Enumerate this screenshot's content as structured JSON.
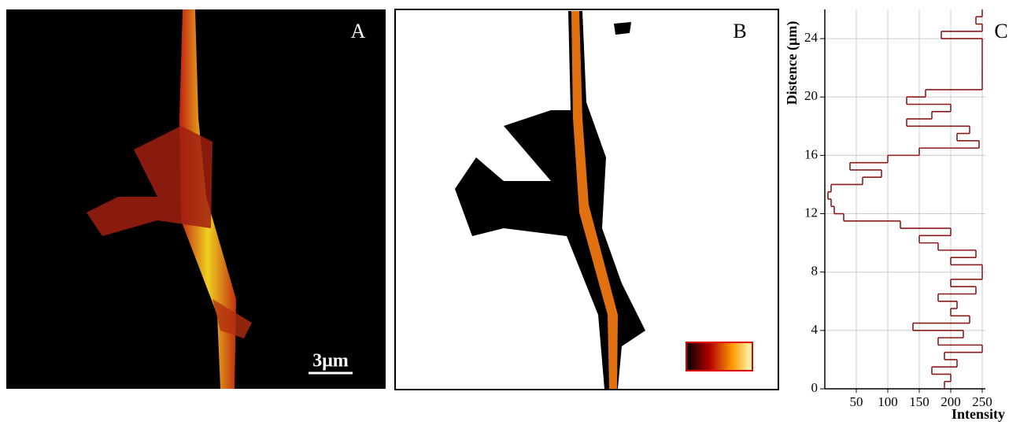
{
  "panels": {
    "a": {
      "label": "A",
      "scale_bar": "3μm"
    },
    "b": {
      "label": "B"
    }
  },
  "chart_data": {
    "type": "step",
    "label": "C",
    "x_label": "Intensity",
    "y_label": "Distence (µm)",
    "x": [
      0,
      0.5,
      1,
      1.5,
      2,
      2.5,
      3,
      3.5,
      4,
      4.5,
      5,
      5.5,
      6,
      6.5,
      7,
      7.5,
      8,
      8.5,
      9,
      9.5,
      10,
      10.5,
      11,
      11.5,
      12,
      12.5,
      13,
      13.5,
      14,
      14.5,
      15,
      15.5,
      16,
      16.5,
      17,
      17.5,
      18,
      18.5,
      19,
      19.5,
      20,
      20.5,
      21,
      21.5,
      22,
      22.5,
      23,
      23.5,
      24,
      24.5,
      25,
      25.5,
      26
    ],
    "values": [
      190,
      200,
      170,
      210,
      190,
      250,
      180,
      220,
      140,
      230,
      200,
      210,
      180,
      240,
      200,
      250,
      250,
      200,
      240,
      180,
      150,
      200,
      120,
      30,
      15,
      10,
      5,
      10,
      60,
      90,
      40,
      100,
      150,
      245,
      210,
      230,
      130,
      170,
      200,
      130,
      160,
      250,
      250,
      250,
      250,
      250,
      250,
      250,
      185,
      250,
      240,
      250,
      250
    ],
    "color": "#8b1a1a",
    "xlim": [
      0,
      255
    ],
    "xticks": [
      50,
      100,
      150,
      200,
      250
    ],
    "ylim": [
      0,
      26
    ],
    "yticks": [
      0,
      4,
      8,
      12,
      16,
      20,
      24
    ],
    "grid": true
  }
}
